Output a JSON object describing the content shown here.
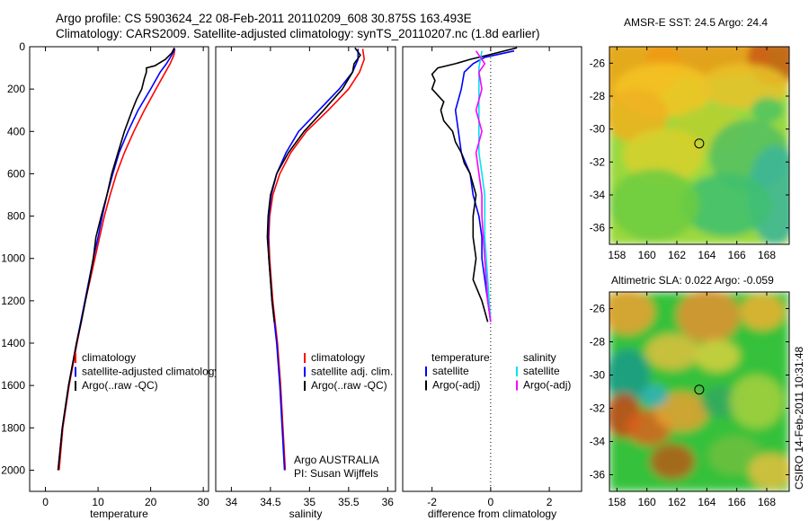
{
  "title": {
    "line1": "Argo profile: CS 5903624_22 08-Feb-2011 20110209_608 30.875S 163.493E",
    "line2": "Climatology: CARS2009. Satellite-adjusted climatology: synTS_20110207.nc (1.8d earlier)"
  },
  "credit": "CSIRO 14-Feb-2011 10:31:48",
  "argo_note": {
    "line1": "Argo AUSTRALIA",
    "line2": "PI: Susan Wijffels"
  },
  "colors": {
    "climatology": "#ff0000",
    "satellite": "#0000ff",
    "argo": "#000000",
    "sat_salinity": "#00e5ee",
    "argo_salinity": "#ff00ff"
  },
  "chart_data": [
    {
      "type": "line",
      "xlabel": "temperature",
      "xlim": [
        -3,
        31
      ],
      "xticks": [
        0,
        10,
        20,
        30
      ],
      "ylim": [
        2100,
        0
      ],
      "yticks": [
        0,
        200,
        400,
        600,
        800,
        1000,
        1200,
        1400,
        1600,
        1800,
        2000
      ],
      "legend_position": "lower-left",
      "series": [
        {
          "name": "climatology",
          "color": "#ff0000",
          "y": [
            10,
            40,
            80,
            120,
            200,
            300,
            400,
            500,
            600,
            700,
            800,
            900,
            1000,
            1200,
            1400,
            1600,
            1800,
            2000
          ],
          "x": [
            24.6,
            24.4,
            23.7,
            22.8,
            21.0,
            18.8,
            16.8,
            15.0,
            13.5,
            12.3,
            11.2,
            10.3,
            9.4,
            7.6,
            6.0,
            4.5,
            3.3,
            2.6
          ]
        },
        {
          "name": "satellite-adjusted climatology",
          "color": "#0000ff",
          "y": [
            10,
            40,
            80,
            120,
            200,
            300,
            400,
            500,
            600,
            700,
            800,
            900,
            1000,
            1200,
            1400,
            1600,
            1800,
            2000
          ],
          "x": [
            24.6,
            24.0,
            23.0,
            21.8,
            20.0,
            17.6,
            15.7,
            14.0,
            12.8,
            11.7,
            10.8,
            10.0,
            9.1,
            7.5,
            5.9,
            4.4,
            3.2,
            2.4
          ]
        },
        {
          "name": "Argo(..raw -QC)",
          "color": "#000000",
          "y": [
            5,
            30,
            60,
            90,
            100,
            120,
            150,
            200,
            250,
            300,
            400,
            500,
            600,
            700,
            800,
            900,
            1000,
            1100,
            1200,
            1300,
            1400,
            1600,
            1800,
            2000
          ],
          "x": [
            24.5,
            24.0,
            22.8,
            20.8,
            19.2,
            19.2,
            18.8,
            18.3,
            17.3,
            16.5,
            15.0,
            13.8,
            12.6,
            11.7,
            10.6,
            9.6,
            9.1,
            8.4,
            7.6,
            6.8,
            5.9,
            4.4,
            3.2,
            2.4
          ]
        }
      ]
    },
    {
      "type": "line",
      "xlabel": "salinity",
      "xlim": [
        33.8,
        36.1
      ],
      "xticks": [
        34,
        34.5,
        35,
        35.5,
        36
      ],
      "ylim": [
        2100,
        0
      ],
      "yticks": [],
      "legend_position": "lower-left",
      "series": [
        {
          "name": "climatology",
          "color": "#ff0000",
          "y": [
            10,
            60,
            120,
            200,
            300,
            400,
            500,
            600,
            700,
            800,
            900,
            1000,
            1100,
            1200,
            1300,
            1400,
            1600,
            1800,
            2000
          ],
          "x": [
            35.68,
            35.7,
            35.64,
            35.5,
            35.24,
            34.96,
            34.76,
            34.62,
            34.53,
            34.49,
            34.48,
            34.49,
            34.51,
            34.53,
            34.56,
            34.59,
            34.63,
            34.66,
            34.69
          ]
        },
        {
          "name": "satellite adj. clim.",
          "color": "#0000ff",
          "y": [
            10,
            60,
            120,
            200,
            300,
            400,
            500,
            600,
            700,
            800,
            900,
            1000,
            1100,
            1200,
            1300,
            1400,
            1600,
            1800,
            2000
          ],
          "x": [
            35.62,
            35.62,
            35.55,
            35.38,
            35.12,
            34.86,
            34.7,
            34.58,
            34.51,
            34.48,
            34.47,
            34.48,
            34.5,
            34.52,
            34.55,
            34.58,
            34.62,
            34.65,
            34.68
          ]
        },
        {
          "name": "Argo(..raw -QC)",
          "color": "#000000",
          "y": [
            5,
            40,
            80,
            120,
            200,
            300,
            400,
            500,
            600,
            700,
            800,
            900,
            1000,
            1100,
            1200,
            1300
          ],
          "x": [
            35.58,
            35.65,
            35.57,
            35.55,
            35.42,
            35.18,
            34.93,
            34.73,
            34.58,
            34.5,
            34.47,
            34.46,
            34.48,
            34.5,
            34.52,
            34.55
          ]
        }
      ]
    },
    {
      "type": "line",
      "xlabel": "difference from climatology",
      "xlim": [
        -3,
        3.1
      ],
      "xticks": [
        -2,
        0,
        2
      ],
      "ylim": [
        2100,
        0
      ],
      "yticks": [],
      "reference_line_x": 0,
      "legend_position": "lower-center",
      "series": [
        {
          "name": "temperature satellite",
          "color": "#0000ff",
          "y": [
            20,
            50,
            80,
            120,
            200,
            300,
            400,
            500,
            600,
            700,
            800,
            900,
            1000,
            1200,
            1300
          ],
          "x": [
            0.8,
            -0.2,
            -0.6,
            -0.9,
            -1.0,
            -1.2,
            -1.1,
            -1.0,
            -0.7,
            -0.6,
            -0.4,
            -0.3,
            -0.3,
            -0.1,
            0.0
          ]
        },
        {
          "name": "temperature Argo(-adj)",
          "color": "#000000",
          "y": [
            5,
            40,
            60,
            80,
            100,
            130,
            160,
            200,
            260,
            300,
            350,
            400,
            450,
            500,
            550,
            600,
            700,
            800,
            900,
            1000,
            1100,
            1200,
            1300
          ],
          "x": [
            0.9,
            -0.1,
            -0.7,
            -1.2,
            -1.8,
            -2.0,
            -1.9,
            -2.0,
            -1.6,
            -1.7,
            -1.6,
            -1.3,
            -1.2,
            -1.0,
            -0.9,
            -0.7,
            -0.5,
            -0.6,
            -0.6,
            -0.5,
            -0.6,
            -0.3,
            -0.1
          ]
        },
        {
          "name": "salinity satellite",
          "color": "#00e5ee",
          "y": [
            20,
            100,
            200,
            300,
            400,
            500,
            600,
            700,
            800,
            900,
            1000,
            1100,
            1200,
            1300
          ],
          "x": [
            -0.3,
            -0.4,
            -0.4,
            -0.4,
            -0.4,
            -0.4,
            -0.3,
            -0.2,
            -0.2,
            -0.2,
            -0.15,
            -0.1,
            -0.05,
            0.0
          ]
        },
        {
          "name": "salinity Argo(-adj)",
          "color": "#ff00ff",
          "y": [
            20,
            80,
            120,
            200,
            300,
            400,
            500,
            600,
            700,
            800,
            900,
            1000,
            1100,
            1200,
            1300
          ],
          "x": [
            -0.5,
            -0.2,
            -0.4,
            -0.3,
            -0.5,
            -0.3,
            -0.5,
            -0.4,
            -0.3,
            -0.3,
            -0.25,
            -0.2,
            -0.15,
            -0.1,
            0.0
          ]
        }
      ]
    },
    {
      "type": "heatmap",
      "title": "AMSR-E SST: 24.5 Argo: 24.4",
      "xlim": [
        157.5,
        169.5
      ],
      "xticks": [
        158,
        160,
        162,
        164,
        166,
        168
      ],
      "ylim": [
        -37,
        -25
      ],
      "yticks": [
        -26,
        -28,
        -30,
        -32,
        -34,
        -36
      ],
      "profile_location": [
        163.493,
        -30.875
      ]
    },
    {
      "type": "heatmap",
      "title": "Altimetric SLA: 0.022 Argo: -0.059",
      "xlim": [
        157.5,
        169.5
      ],
      "xticks": [
        158,
        160,
        162,
        164,
        166,
        168
      ],
      "ylim": [
        -37,
        -25
      ],
      "yticks": [
        -26,
        -28,
        -30,
        -32,
        -34,
        -36
      ],
      "profile_location": [
        163.493,
        -30.875
      ]
    }
  ],
  "legends": {
    "temperature": [
      "climatology",
      "satellite-adjusted climatology",
      "Argo(..raw -QC)"
    ],
    "salinity": [
      "climatology",
      "satellite adj. clim.",
      "Argo(..raw -QC)"
    ],
    "difference": {
      "header_left": "temperature",
      "header_right": "salinity",
      "left": [
        "satellite",
        "Argo(-adj)"
      ],
      "right": [
        "satellite",
        "Argo(-adj)"
      ]
    }
  }
}
